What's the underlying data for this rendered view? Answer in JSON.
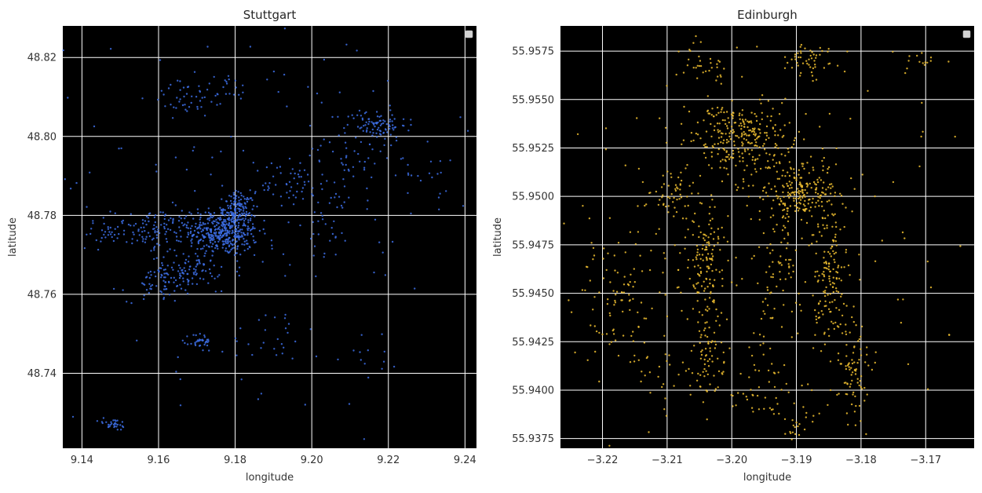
{
  "chart_data": [
    {
      "type": "scatter",
      "title": "Stuttgart",
      "xlabel": "longitude",
      "ylabel": "latitude",
      "xlim": [
        9.135,
        9.243
      ],
      "ylim": [
        48.721,
        48.828
      ],
      "xticks": [
        9.14,
        9.16,
        9.18,
        9.2,
        9.22,
        9.24
      ],
      "xtick_labels": [
        "9.14",
        "9.16",
        "9.18",
        "9.20",
        "9.22",
        "9.24"
      ],
      "yticks": [
        48.74,
        48.76,
        48.78,
        48.8,
        48.82
      ],
      "ytick_labels": [
        "48.74",
        "48.76",
        "48.78",
        "48.80",
        "48.82"
      ],
      "grid": true,
      "background": "#000000",
      "point_color": "#3d6fe6",
      "legend": "top-right",
      "clusters": [
        {
          "cx": 9.177,
          "cy": 48.776,
          "sx": 0.0045,
          "sy": 0.0032,
          "n": 420
        },
        {
          "cx": 9.181,
          "cy": 48.782,
          "sx": 0.002,
          "sy": 0.002,
          "n": 90
        },
        {
          "cx": 9.167,
          "cy": 48.766,
          "sx": 0.0045,
          "sy": 0.0018,
          "n": 100
        },
        {
          "cx": 9.16,
          "cy": 48.776,
          "sx": 0.006,
          "sy": 0.003,
          "n": 120
        },
        {
          "cx": 9.16,
          "cy": 48.762,
          "sx": 0.004,
          "sy": 0.002,
          "n": 40
        },
        {
          "cx": 9.147,
          "cy": 48.775,
          "sx": 0.004,
          "sy": 0.0015,
          "n": 30
        },
        {
          "cx": 9.217,
          "cy": 48.803,
          "sx": 0.004,
          "sy": 0.002,
          "n": 90
        },
        {
          "cx": 9.195,
          "cy": 48.788,
          "sx": 0.004,
          "sy": 0.0025,
          "n": 45
        },
        {
          "cx": 9.21,
          "cy": 48.795,
          "sx": 0.006,
          "sy": 0.003,
          "n": 40
        },
        {
          "cx": 9.171,
          "cy": 48.748,
          "sx": 0.0015,
          "sy": 0.0012,
          "n": 35
        },
        {
          "cx": 9.148,
          "cy": 48.727,
          "sx": 0.002,
          "sy": 0.0008,
          "n": 30
        },
        {
          "cx": 9.168,
          "cy": 48.81,
          "sx": 0.005,
          "sy": 0.002,
          "n": 40
        },
        {
          "cx": 9.178,
          "cy": 48.812,
          "sx": 0.003,
          "sy": 0.002,
          "n": 20
        },
        {
          "cx": 9.205,
          "cy": 48.778,
          "sx": 0.003,
          "sy": 0.004,
          "n": 30
        },
        {
          "cx": 9.19,
          "cy": 48.75,
          "sx": 0.006,
          "sy": 0.004,
          "n": 25
        },
        {
          "cx": 9.215,
          "cy": 48.745,
          "sx": 0.004,
          "sy": 0.003,
          "n": 12
        },
        {
          "cx": 9.232,
          "cy": 48.79,
          "sx": 0.003,
          "sy": 0.004,
          "n": 15
        },
        {
          "cx": 9.19,
          "cy": 48.79,
          "sx": 0.03,
          "sy": 0.025,
          "n": 150
        }
      ]
    },
    {
      "type": "scatter",
      "title": "Edinburgh",
      "xlabel": "longitude",
      "ylabel": "latitude",
      "xlim": [
        -3.2265,
        -3.1625
      ],
      "ylim": [
        55.937,
        55.9588
      ],
      "xticks": [
        -3.22,
        -3.21,
        -3.2,
        -3.19,
        -3.18,
        -3.17
      ],
      "xtick_labels": [
        "−3.22",
        "−3.21",
        "−3.20",
        "−3.19",
        "−3.18",
        "−3.17"
      ],
      "yticks": [
        55.9375,
        55.94,
        55.9425,
        55.945,
        55.9475,
        55.95,
        55.9525,
        55.955,
        55.9575
      ],
      "ytick_labels": [
        "55.9375",
        "55.9400",
        "55.9425",
        "55.9450",
        "55.9475",
        "55.9500",
        "55.9525",
        "55.9550",
        "55.9575"
      ],
      "grid": true,
      "background": "#000000",
      "point_color": "#f0c030",
      "legend": "top-right",
      "clusters": [
        {
          "cx": -3.199,
          "cy": 55.953,
          "sx": 0.0035,
          "sy": 0.0009,
          "n": 260
        },
        {
          "cx": -3.19,
          "cy": 55.9502,
          "sx": 0.003,
          "sy": 0.0008,
          "n": 200
        },
        {
          "cx": -3.204,
          "cy": 55.9465,
          "sx": 0.0015,
          "sy": 0.0015,
          "n": 120
        },
        {
          "cx": -3.185,
          "cy": 55.946,
          "sx": 0.0015,
          "sy": 0.0022,
          "n": 150
        },
        {
          "cx": -3.181,
          "cy": 55.941,
          "sx": 0.0012,
          "sy": 0.0015,
          "n": 80
        },
        {
          "cx": -3.2035,
          "cy": 55.942,
          "sx": 0.0012,
          "sy": 0.0012,
          "n": 60
        },
        {
          "cx": -3.218,
          "cy": 55.9445,
          "sx": 0.003,
          "sy": 0.0018,
          "n": 80
        },
        {
          "cx": -3.209,
          "cy": 55.95,
          "sx": 0.002,
          "sy": 0.0008,
          "n": 50
        },
        {
          "cx": -3.188,
          "cy": 55.957,
          "sx": 0.002,
          "sy": 0.0005,
          "n": 50
        },
        {
          "cx": -3.206,
          "cy": 55.957,
          "sx": 0.0015,
          "sy": 0.0004,
          "n": 20
        },
        {
          "cx": -3.202,
          "cy": 55.9565,
          "sx": 0.0005,
          "sy": 0.0004,
          "n": 10
        },
        {
          "cx": -3.17,
          "cy": 55.957,
          "sx": 0.002,
          "sy": 0.0004,
          "n": 15
        },
        {
          "cx": -3.193,
          "cy": 55.946,
          "sx": 0.0015,
          "sy": 0.0015,
          "n": 60
        },
        {
          "cx": -3.195,
          "cy": 55.94,
          "sx": 0.003,
          "sy": 0.001,
          "n": 40
        },
        {
          "cx": -3.19,
          "cy": 55.938,
          "sx": 0.0015,
          "sy": 0.0004,
          "n": 20
        },
        {
          "cx": -3.21,
          "cy": 55.942,
          "sx": 0.004,
          "sy": 0.002,
          "n": 40
        },
        {
          "cx": -3.195,
          "cy": 55.948,
          "sx": 0.015,
          "sy": 0.005,
          "n": 200
        }
      ]
    }
  ]
}
